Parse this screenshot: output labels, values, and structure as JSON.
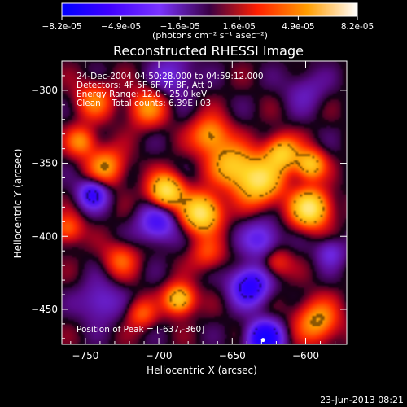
{
  "chart_data": {
    "type": "heatmap",
    "title": "Reconstructed RHESSI Image",
    "xlabel": "Heliocentric X (arcsec)",
    "ylabel": "Heliocentric Y (arcsec)",
    "x_ticks": [
      -750,
      -700,
      -650,
      -600
    ],
    "y_ticks": [
      -300,
      -350,
      -400,
      -450
    ],
    "xlim": [
      -766,
      -572
    ],
    "ylim": [
      -474,
      -280
    ],
    "colorbar": {
      "ticks": [
        "-8.2e-05",
        "-4.9e-05",
        "-1.6e-05",
        "1.6e-05",
        "4.9e-05",
        "8.2e-05"
      ],
      "range": [
        -8.2e-05,
        8.2e-05
      ],
      "unit_label": "(photons cm⁻² s⁻¹ asec⁻²)"
    },
    "annotations": [
      "24-Dec-2004 04:50:28.000 to 04:59:12.000",
      "Detectors: 4F 5F 6F 7F 8F, Att 0",
      "Energy Range: 12.0 - 25.0 keV",
      "Clean    Total counts: 6.39E+03"
    ],
    "peak_label": "Position of Peak = [-637,-360]",
    "peak": [
      -637,
      -360
    ],
    "blobs": [
      {
        "x": -671,
        "y": -384,
        "v": 0.95,
        "s": 9
      },
      {
        "x": -632,
        "y": -362,
        "v": 0.85,
        "s": 11
      },
      {
        "x": -597,
        "y": -381,
        "v": 0.95,
        "s": 9
      },
      {
        "x": -695,
        "y": -369,
        "v": 0.9,
        "s": 8
      },
      {
        "x": -616,
        "y": -343,
        "v": 0.7,
        "s": 8
      },
      {
        "x": -597,
        "y": -351,
        "v": 0.7,
        "s": 7
      },
      {
        "x": -651,
        "y": -351,
        "v": 0.6,
        "s": 10
      },
      {
        "x": -665,
        "y": -331,
        "v": 0.55,
        "s": 9
      },
      {
        "x": -736,
        "y": -352,
        "v": 0.5,
        "s": 9
      },
      {
        "x": -753,
        "y": -335,
        "v": 0.45,
        "s": 7
      },
      {
        "x": -708,
        "y": -312,
        "v": 0.45,
        "s": 9
      },
      {
        "x": -744,
        "y": -307,
        "v": 0.4,
        "s": 9
      },
      {
        "x": -686,
        "y": -443,
        "v": 0.75,
        "s": 7
      },
      {
        "x": -726,
        "y": -416,
        "v": 0.35,
        "s": 8
      },
      {
        "x": -712,
        "y": -453,
        "v": 0.35,
        "s": 7
      },
      {
        "x": -592,
        "y": -458,
        "v": 0.55,
        "s": 10
      },
      {
        "x": -620,
        "y": -418,
        "v": 0.3,
        "s": 7
      },
      {
        "x": -667,
        "y": -412,
        "v": 0.3,
        "s": 8
      },
      {
        "x": -762,
        "y": -395,
        "v": 0.4,
        "s": 7
      },
      {
        "x": -745,
        "y": -371,
        "v": -0.6,
        "s": 7
      },
      {
        "x": -701,
        "y": -391,
        "v": -0.5,
        "s": 9
      },
      {
        "x": -630,
        "y": -402,
        "v": -0.4,
        "s": 9
      },
      {
        "x": -638,
        "y": -434,
        "v": -0.7,
        "s": 9
      },
      {
        "x": -628,
        "y": -470,
        "v": -0.9,
        "s": 8
      },
      {
        "x": -583,
        "y": -411,
        "v": -0.3,
        "s": 7
      },
      {
        "x": -740,
        "y": -445,
        "v": -0.3,
        "s": 10
      },
      {
        "x": -690,
        "y": -290,
        "v": -0.3,
        "s": 10
      },
      {
        "x": -600,
        "y": -300,
        "v": -0.2,
        "s": 10
      }
    ],
    "footer": "23-Jun-2013 08:21"
  }
}
